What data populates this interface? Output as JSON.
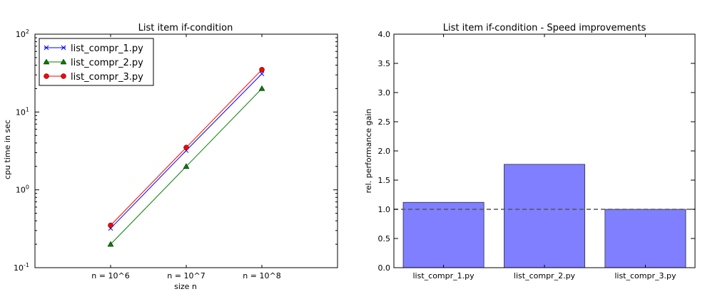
{
  "chart_data": [
    {
      "type": "line",
      "title": "List item if-condition",
      "xlabel": "size n",
      "ylabel": "cpu time in sec",
      "yscale": "log",
      "ylim": [
        0.1,
        100
      ],
      "xlim": [
        0,
        4
      ],
      "x": [
        1,
        2,
        3
      ],
      "x_tick_labels": [
        "n = 10^6",
        "n = 10^7",
        "n = 10^8"
      ],
      "y_ticks": [
        {
          "value": 0.1,
          "base": "10",
          "exp": "-1"
        },
        {
          "value": 1,
          "base": "10",
          "exp": "0"
        },
        {
          "value": 10,
          "base": "10",
          "exp": "1"
        },
        {
          "value": 100,
          "base": "10",
          "exp": "2"
        }
      ],
      "legend_position": "top-left",
      "grid": false,
      "series": [
        {
          "name": "list_compr_1.py",
          "values": [
            0.32,
            3.2,
            31
          ],
          "color": "#0000ff",
          "marker": "x"
        },
        {
          "name": "list_compr_2.py",
          "values": [
            0.2,
            2.0,
            20
          ],
          "color": "#008000",
          "marker": "triangle"
        },
        {
          "name": "list_compr_3.py",
          "values": [
            0.35,
            3.5,
            35
          ],
          "color": "#ff0000",
          "marker": "circle"
        }
      ]
    },
    {
      "type": "bar",
      "title": "List item if-condition - Speed improvements",
      "xlabel": "",
      "ylabel": "rel. performance gain",
      "ylim": [
        0.0,
        4.0
      ],
      "y_tick_labels": [
        "0.0",
        "0.5",
        "1.0",
        "1.5",
        "2.0",
        "2.5",
        "3.0",
        "3.5",
        "4.0"
      ],
      "categories": [
        "list_compr_1.py",
        "list_compr_2.py",
        "list_compr_3.py"
      ],
      "values": [
        1.12,
        1.77,
        1.0
      ],
      "bar_color": "#7f7fff",
      "reference_line": 1.0,
      "grid": false
    }
  ]
}
